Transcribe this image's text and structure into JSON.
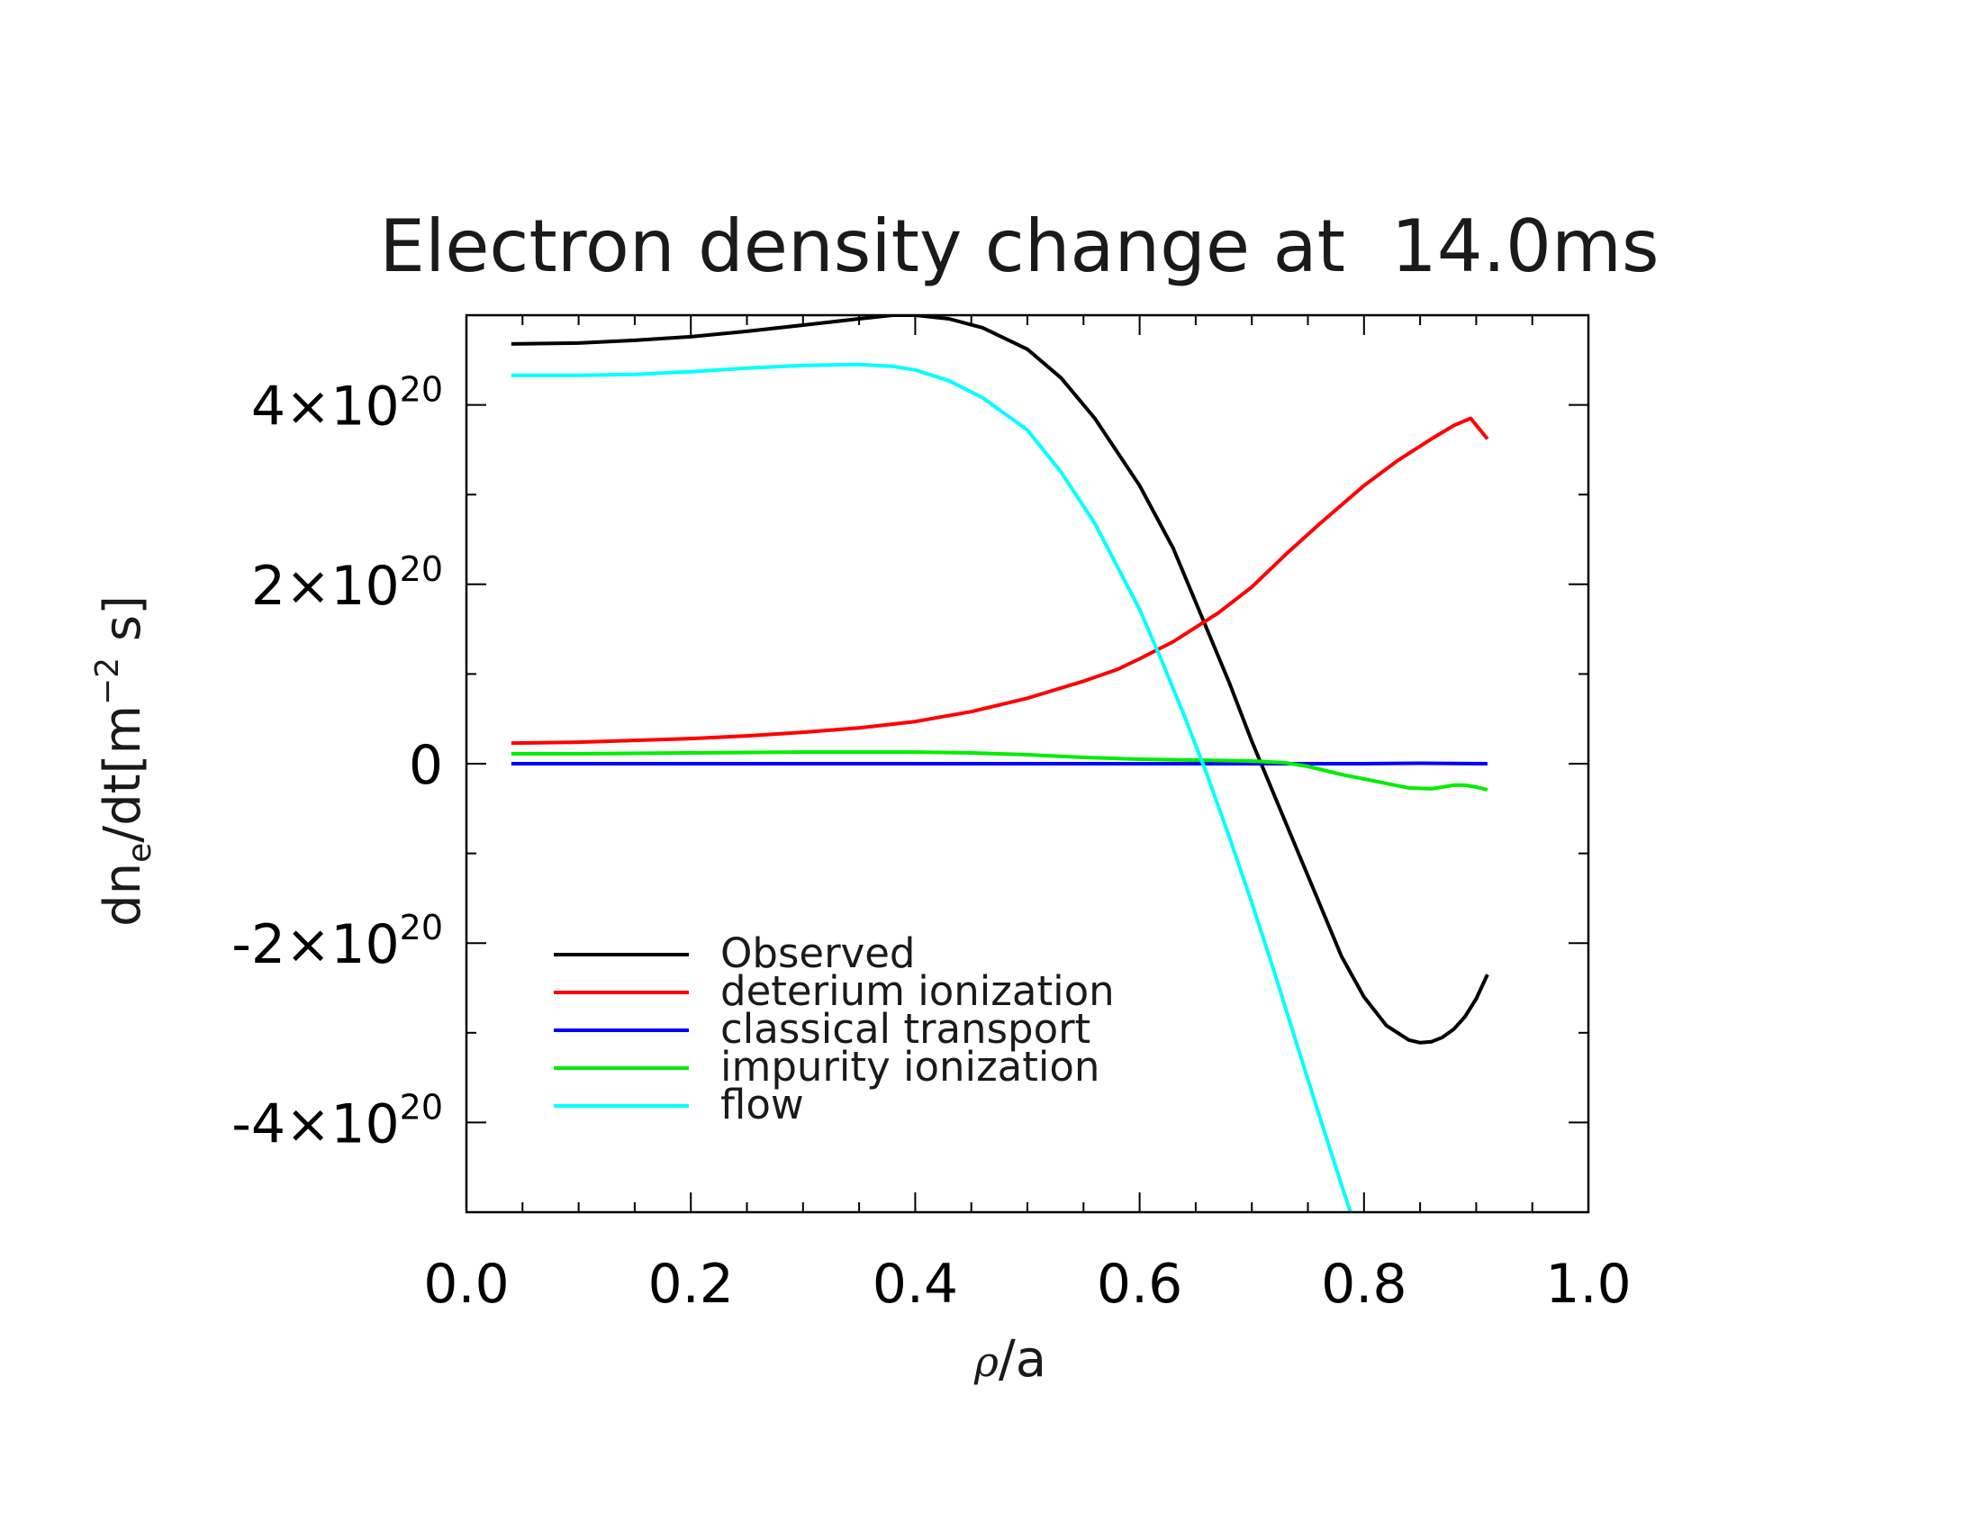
{
  "chart_data": {
    "type": "line",
    "title": "Electron density change at  14.0ms",
    "xlabel": {
      "prefix": "/a",
      "symbol": "ρ"
    },
    "ylabel": {
      "base": "dn",
      "sub": "e",
      "mid": "/dt[m",
      "sup": "−2",
      "end": " s]"
    },
    "xlim": [
      0.0,
      1.0
    ],
    "ylim": [
      -5e+20,
      5e+20
    ],
    "x_ticks": [
      {
        "value": 0.0,
        "label": "0.0"
      },
      {
        "value": 0.2,
        "label": "0.2"
      },
      {
        "value": 0.4,
        "label": "0.4"
      },
      {
        "value": 0.6,
        "label": "0.6"
      },
      {
        "value": 0.8,
        "label": "0.8"
      },
      {
        "value": 1.0,
        "label": "1.0"
      }
    ],
    "y_ticks": [
      {
        "value": 4e+20,
        "mant": "4×10",
        "exp": "20"
      },
      {
        "value": 2e+20,
        "mant": "2×10",
        "exp": "20"
      },
      {
        "value": 0,
        "mant": "0",
        "exp": ""
      },
      {
        "value": -2e+20,
        "mant": "-2×10",
        "exp": "20"
      },
      {
        "value": -4e+20,
        "mant": "-4×10",
        "exp": "20"
      }
    ],
    "x_minor_step": 0.05,
    "y_minor_step": 1e+20,
    "grid": false,
    "legend_position": "lower-left",
    "series": [
      {
        "name": "Observed",
        "color": "#000000",
        "x": [
          0.04,
          0.1,
          0.15,
          0.2,
          0.25,
          0.3,
          0.35,
          0.38,
          0.4,
          0.43,
          0.46,
          0.5,
          0.53,
          0.56,
          0.6,
          0.63,
          0.66,
          0.68,
          0.7,
          0.72,
          0.74,
          0.76,
          0.78,
          0.8,
          0.82,
          0.84,
          0.85,
          0.86,
          0.87,
          0.88,
          0.89,
          0.9,
          0.91
        ],
        "y": [
          4.68e+20,
          4.69e+20,
          4.72e+20,
          4.76e+20,
          4.82e+20,
          4.89e+20,
          4.96e+20,
          5e+20,
          5e+20,
          4.96e+20,
          4.86e+20,
          4.62e+20,
          4.3e+20,
          3.85e+20,
          3.1e+20,
          2.4e+20,
          1.5e+20,
          9e+19,
          2.5e+19,
          -3.5e+19,
          -9.5e+19,
          -1.55e+20,
          -2.15e+20,
          -2.6e+20,
          -2.92e+20,
          -3.08e+20,
          -3.11e+20,
          -3.1e+20,
          -3.05e+20,
          -2.96e+20,
          -2.82e+20,
          -2.62e+20,
          -2.35e+20
        ]
      },
      {
        "name": "deterium ionization",
        "color": "#ff0000",
        "x": [
          0.04,
          0.1,
          0.15,
          0.2,
          0.25,
          0.3,
          0.35,
          0.4,
          0.45,
          0.5,
          0.55,
          0.58,
          0.6,
          0.63,
          0.65,
          0.67,
          0.7,
          0.73,
          0.76,
          0.8,
          0.83,
          0.86,
          0.88,
          0.895,
          0.91
        ],
        "y": [
          2.3e+19,
          2.4e+19,
          2.6e+19,
          2.8e+19,
          3.1e+19,
          3.5e+19,
          4e+19,
          4.7e+19,
          5.8e+19,
          7.3e+19,
          9.2e+19,
          1.05e+20,
          1.17e+20,
          1.36e+20,
          1.52e+20,
          1.68e+20,
          1.97e+20,
          2.33e+20,
          2.67e+20,
          3.1e+20,
          3.38e+20,
          3.62e+20,
          3.77e+20,
          3.85e+20,
          3.62e+20
        ]
      },
      {
        "name": "classical transport",
        "color": "#0000ff",
        "x": [
          0.04,
          0.2,
          0.4,
          0.6,
          0.75,
          0.8,
          0.85,
          0.91
        ],
        "y": [
          0.0,
          0.0,
          0.0,
          0.0,
          0.0,
          0.0,
          5e+17,
          0.0
        ]
      },
      {
        "name": "impurity ionization",
        "color": "#00ee00",
        "x": [
          0.04,
          0.1,
          0.2,
          0.3,
          0.35,
          0.4,
          0.45,
          0.5,
          0.55,
          0.6,
          0.65,
          0.7,
          0.73,
          0.75,
          0.78,
          0.8,
          0.82,
          0.84,
          0.86,
          0.87,
          0.88,
          0.89,
          0.9,
          0.91
        ],
        "y": [
          1.1e+19,
          1.1e+19,
          1.2e+19,
          1.3e+19,
          1.3e+19,
          1.3e+19,
          1.2e+19,
          1e+19,
          7e+18,
          5e+18,
          4e+18,
          3e+18,
          1e+18,
          -3e+18,
          -1.2e+19,
          -1.7e+19,
          -2.2e+19,
          -2.7e+19,
          -2.8e+19,
          -2.6e+19,
          -2.4e+19,
          -2.4e+19,
          -2.6e+19,
          -2.9e+19
        ]
      },
      {
        "name": "flow",
        "color": "#00ffff",
        "x": [
          0.04,
          0.1,
          0.15,
          0.2,
          0.25,
          0.3,
          0.35,
          0.38,
          0.4,
          0.43,
          0.46,
          0.5,
          0.53,
          0.56,
          0.6,
          0.62,
          0.64,
          0.66,
          0.68,
          0.7,
          0.72,
          0.74,
          0.76,
          0.78,
          0.788
        ],
        "y": [
          4.33e+20,
          4.33e+20,
          4.34e+20,
          4.37e+20,
          4.41e+20,
          4.44e+20,
          4.45e+20,
          4.43e+20,
          4.39e+20,
          4.27e+20,
          4.08e+20,
          3.72e+20,
          3.25e+20,
          2.68e+20,
          1.72e+20,
          1.14e+20,
          5.3e+19,
          -1.2e+19,
          -8.2e+19,
          -1.55e+20,
          -2.32e+20,
          -3.12e+20,
          -3.92e+20,
          -4.7e+20,
          -5e+20
        ]
      }
    ]
  }
}
